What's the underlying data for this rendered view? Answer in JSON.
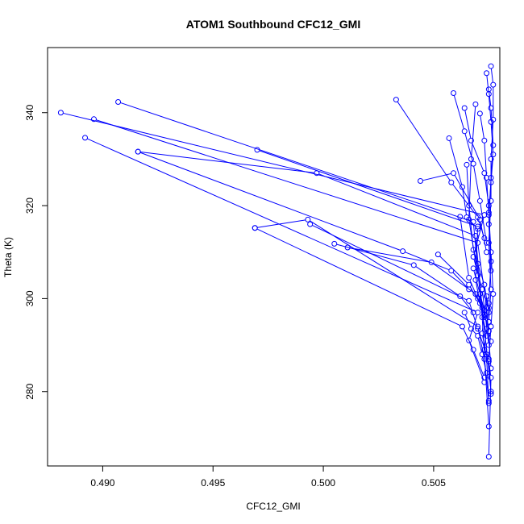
{
  "chart_data": {
    "type": "line",
    "title": "ATOM1 Southbound CFC12_GMI",
    "xlabel": "CFC12_GMI",
    "ylabel": "Theta (K)",
    "xlim": [
      0.4875,
      0.508
    ],
    "ylim": [
      264,
      354
    ],
    "xticks": [
      0.49,
      0.495,
      0.5,
      0.505
    ],
    "xtick_labels": [
      "0.490",
      "0.495",
      "0.500",
      "0.505"
    ],
    "yticks": [
      280,
      300,
      320,
      340
    ],
    "ytick_labels": [
      "280",
      "300",
      "320",
      "340"
    ],
    "grid": false,
    "legend": "none",
    "series_color": "#0000ff",
    "marker": "open-circle",
    "segments": [
      {
        "x": [
          0.4881,
          0.5073,
          0.5068,
          0.5072,
          0.5075
        ],
        "y": [
          340.0,
          318.0,
          309.0,
          302.0,
          290.0
        ]
      },
      {
        "x": [
          0.4896,
          0.507,
          0.5074,
          0.5076
        ],
        "y": [
          338.6,
          312.0,
          298.0,
          285.0
        ]
      },
      {
        "x": [
          0.4907,
          0.5068,
          0.5072,
          0.5075
        ],
        "y": [
          342.3,
          316.5,
          296.0,
          272.5
        ]
      },
      {
        "x": [
          0.4892,
          0.507,
          0.5066,
          0.5073
        ],
        "y": [
          334.6,
          297.0,
          291.0,
          282.0
        ]
      },
      {
        "x": [
          0.4916,
          0.5036,
          0.5058,
          0.5066
        ],
        "y": [
          331.6,
          310.2,
          306.0,
          302.0
        ]
      },
      {
        "x": [
          0.4916,
          0.4997,
          0.5069,
          0.5072,
          0.5076
        ],
        "y": [
          331.6,
          327.0,
          313.5,
          298.0,
          280.0
        ]
      },
      {
        "x": [
          0.497,
          0.507,
          0.5069,
          0.5074
        ],
        "y": [
          332.0,
          315.5,
          304.0,
          292.0
        ]
      },
      {
        "x": [
          0.4969,
          0.4993,
          0.507,
          0.5073,
          0.5075
        ],
        "y": [
          315.2,
          317.0,
          294.0,
          287.0,
          278.0
        ]
      },
      {
        "x": [
          0.4969,
          0.5063,
          0.5068,
          0.5073
        ],
        "y": [
          315.2,
          294.0,
          289.0,
          283.0
        ]
      },
      {
        "x": [
          0.4994,
          0.5066,
          0.507,
          0.5074
        ],
        "y": [
          316.0,
          299.5,
          293.5,
          288.0
        ]
      },
      {
        "x": [
          0.5005,
          0.5041,
          0.5062,
          0.5068
        ],
        "y": [
          311.8,
          307.2,
          300.5,
          297.0
        ]
      },
      {
        "x": [
          0.5011,
          0.5049,
          0.5069,
          0.5073
        ],
        "y": [
          311.0,
          307.8,
          301.0,
          297.5
        ]
      },
      {
        "x": [
          0.5052,
          0.5066,
          0.5071,
          0.5075
        ],
        "y": [
          309.5,
          303.0,
          299.0,
          295.0
        ]
      },
      {
        "x": [
          0.5033,
          0.5058,
          0.507,
          0.5073
        ],
        "y": [
          342.8,
          325.0,
          317.5,
          313.0
        ]
      },
      {
        "x": [
          0.5044,
          0.5059,
          0.5071,
          0.5074
        ],
        "y": [
          325.3,
          327.0,
          317.0,
          310.0
        ]
      },
      {
        "x": [
          0.5057,
          0.5063,
          0.5065,
          0.507
        ],
        "y": [
          334.5,
          324.0,
          317.5,
          315.0
        ]
      },
      {
        "x": [
          0.5059,
          0.5064,
          0.5068,
          0.5071,
          0.5074
        ],
        "y": [
          344.2,
          336.0,
          329.0,
          321.0,
          312.0
        ]
      },
      {
        "x": [
          0.5064,
          0.5067,
          0.5073,
          0.5075
        ],
        "y": [
          341.0,
          334.0,
          327.0,
          320.0
        ]
      },
      {
        "x": [
          0.5065,
          0.5066,
          0.5068,
          0.507,
          0.5073,
          0.5075
        ],
        "y": [
          328.8,
          320.0,
          310.5,
          307.5,
          303.0,
          297.0
        ]
      },
      {
        "x": [
          0.5069,
          0.5067,
          0.5066,
          0.507
        ],
        "y": [
          341.8,
          330.0,
          317.0,
          305.0
        ]
      },
      {
        "x": [
          0.5071,
          0.5073,
          0.5074,
          0.5075,
          0.5076
        ],
        "y": [
          339.8,
          334.0,
          326.0,
          318.0,
          306.0
        ]
      },
      {
        "x": [
          0.5074,
          0.5075,
          0.5076,
          0.5077,
          0.5076,
          0.5075,
          0.5076,
          0.5077,
          0.5076,
          0.5075,
          0.5076
        ],
        "y": [
          348.5,
          344.0,
          338.0,
          331.0,
          325.0,
          318.5,
          310.0,
          301.0,
          294.0,
          287.0,
          279.5
        ]
      },
      {
        "x": [
          0.5076,
          0.5077,
          0.5077,
          0.5076,
          0.5076,
          0.5075,
          0.5076,
          0.5075
        ],
        "y": [
          350.0,
          346.0,
          338.5,
          330.0,
          321.0,
          312.0,
          302.0,
          295.0
        ]
      },
      {
        "x": [
          0.5075,
          0.5076,
          0.5077,
          0.5076,
          0.5075,
          0.5076,
          0.5075
        ],
        "y": [
          345.0,
          341.0,
          333.0,
          326.0,
          316.0,
          308.0,
          299.0
        ]
      },
      {
        "x": [
          0.5073,
          0.5074,
          0.5075,
          0.5074,
          0.5073,
          0.5075,
          0.5076,
          0.5075
        ],
        "y": [
          296.0,
          300.5,
          298.0,
          293.5,
          289.0,
          286.5,
          283.0,
          266.0
        ]
      },
      {
        "x": [
          0.5068,
          0.5071,
          0.5073,
          0.5072,
          0.5074,
          0.5075
        ],
        "y": [
          306.5,
          301.0,
          297.5,
          292.5,
          287.5,
          277.5
        ]
      },
      {
        "x": [
          0.5064,
          0.5067,
          0.507,
          0.5072,
          0.5074
        ],
        "y": [
          297.0,
          293.5,
          292.0,
          288.0,
          284.0
        ]
      },
      {
        "x": [
          0.5062,
          0.5066,
          0.507,
          0.5073,
          0.5075,
          0.5076
        ],
        "y": [
          317.6,
          304.5,
          300.0,
          296.5,
          293.0,
          290.8
        ]
      }
    ]
  }
}
